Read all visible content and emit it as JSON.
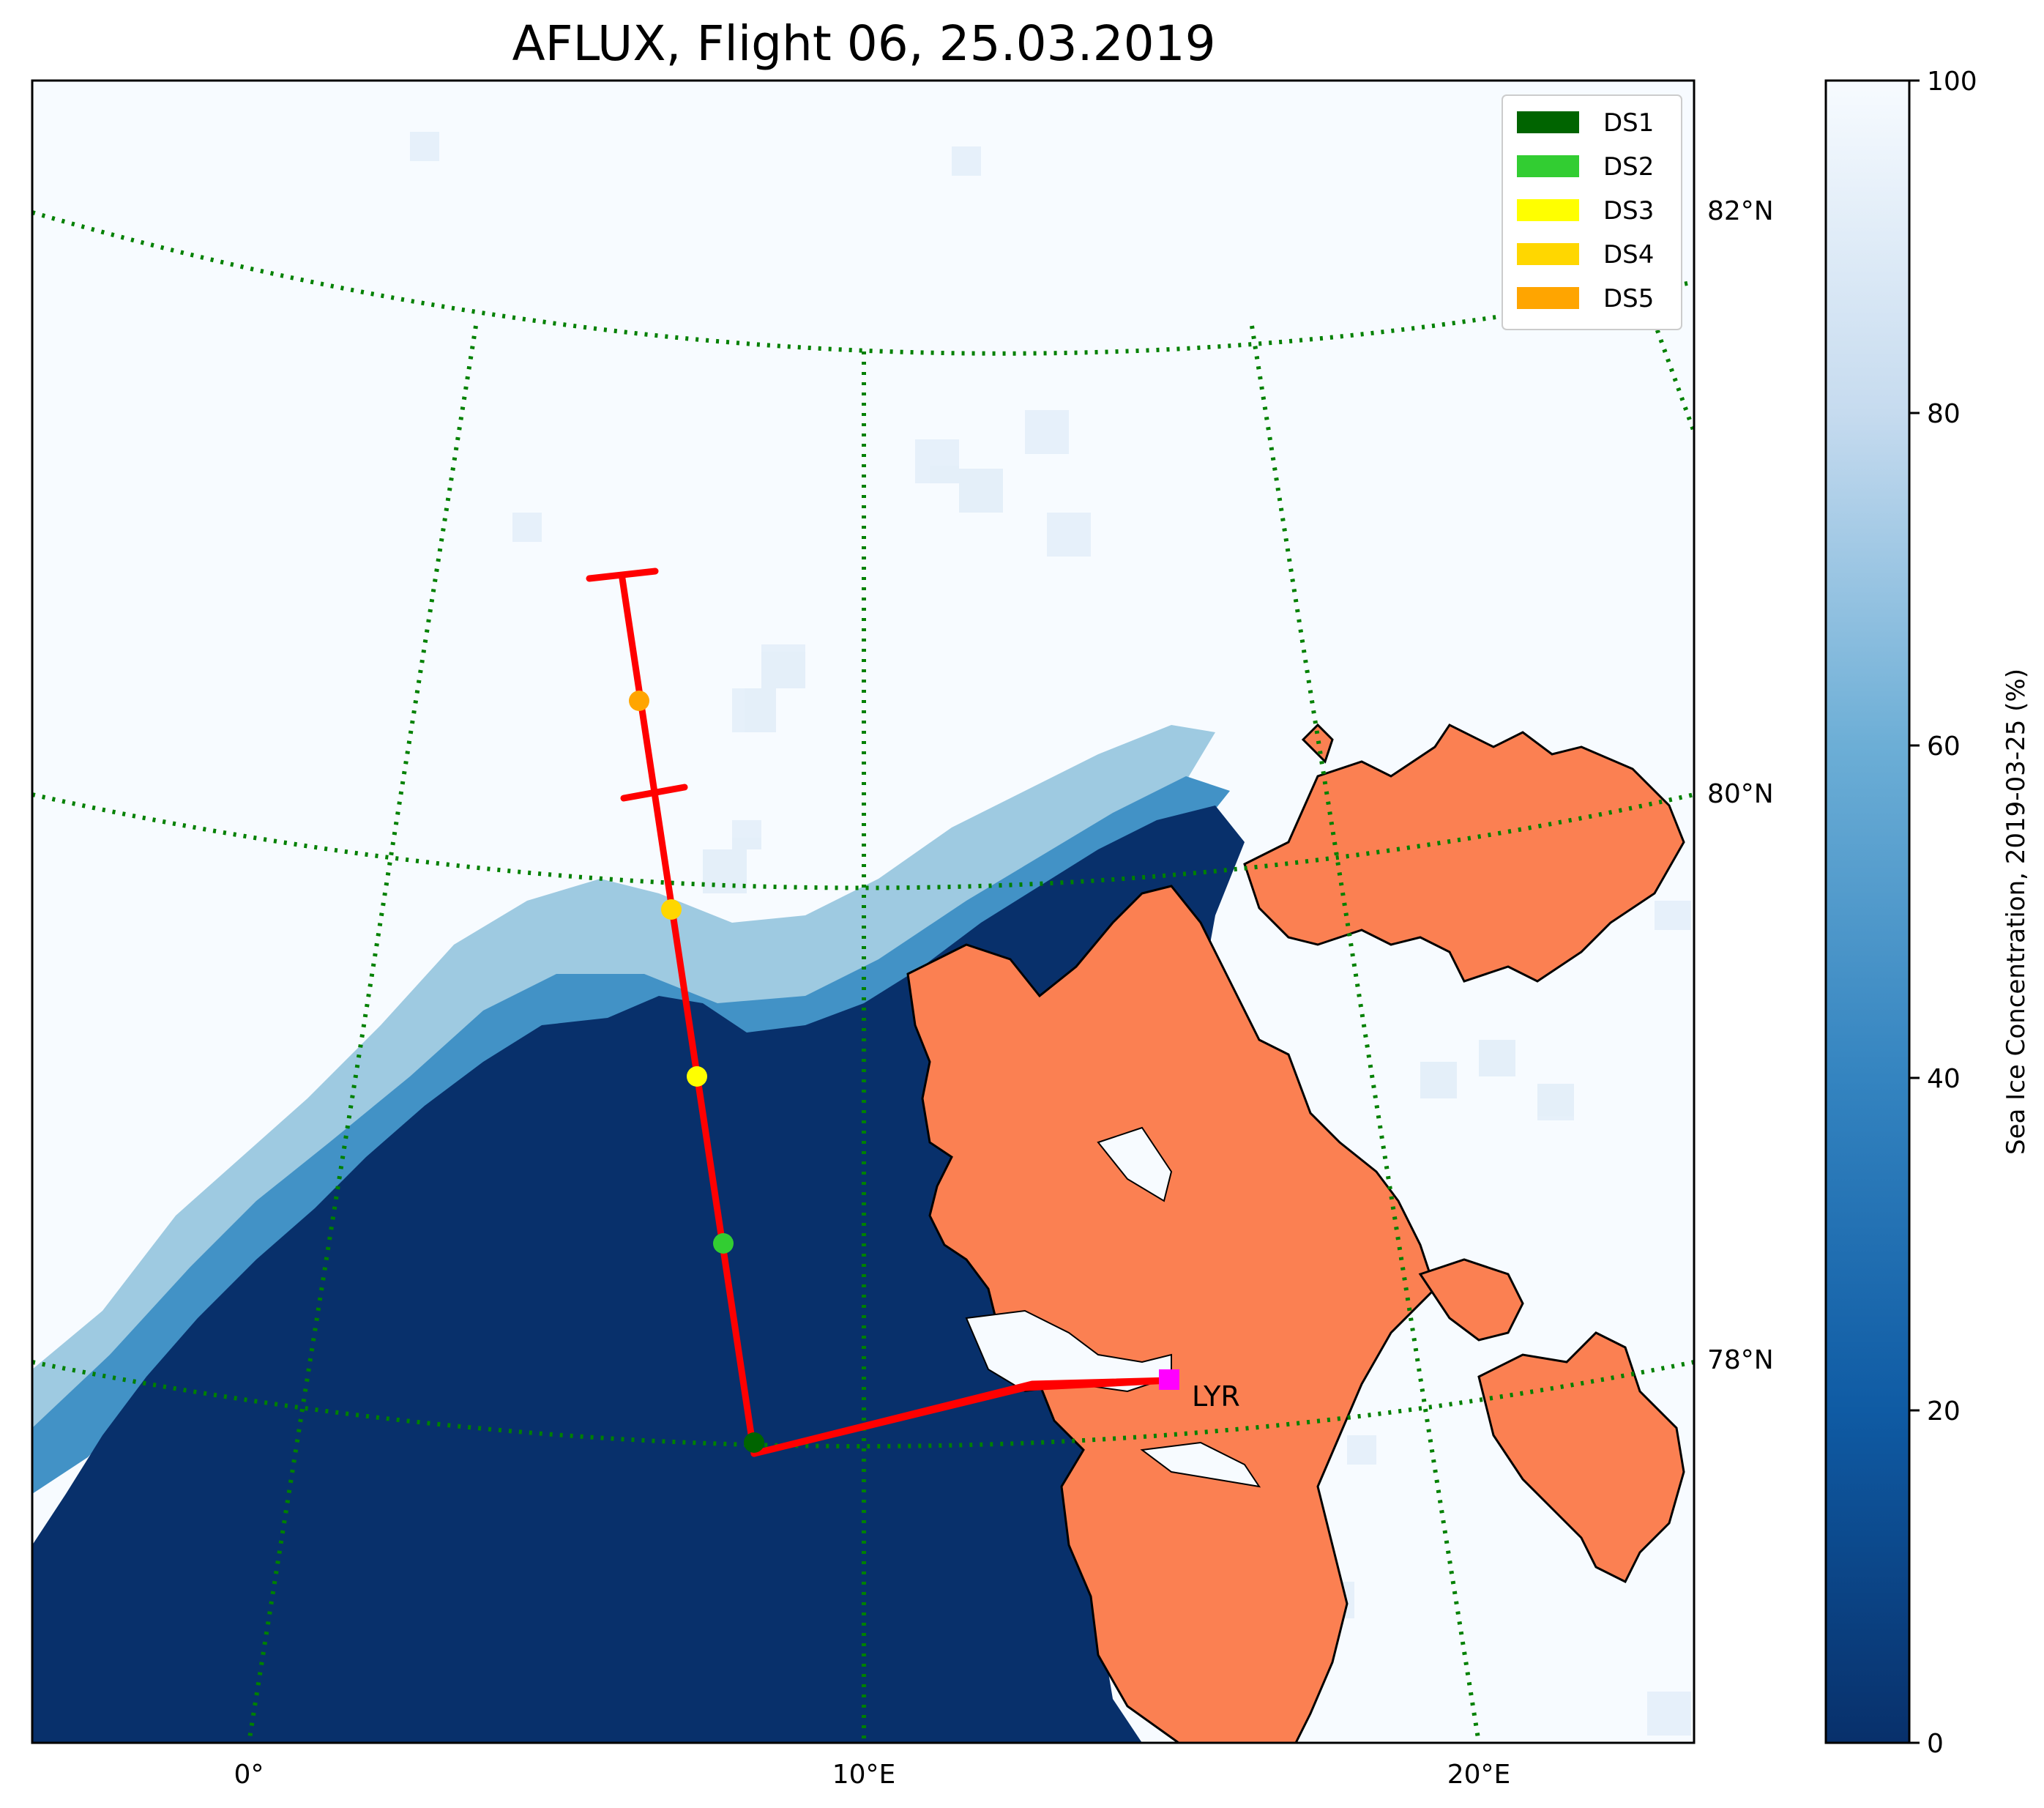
{
  "title": "AFLUX, Flight 06, 25.03.2019",
  "colors": {
    "ocean": "#08306b",
    "ice": "#f7fbff",
    "land": "#fb8052",
    "track": "#ff0000",
    "graticule": "#008000",
    "airport_marker": "#ff00ff"
  },
  "lat_labels": [
    "82°N",
    "80°N",
    "78°N"
  ],
  "lon_labels": [
    "0°",
    "10°E",
    "20°E"
  ],
  "legend": [
    {
      "label": "DS1",
      "color": "#006400"
    },
    {
      "label": "DS2",
      "color": "#32cd32"
    },
    {
      "label": "DS3",
      "color": "#ffff00"
    },
    {
      "label": "DS4",
      "color": "#ffd700"
    },
    {
      "label": "DS5",
      "color": "#ffa500"
    }
  ],
  "colorbar": {
    "label": "Sea Ice Concentration, 2019-03-25 (%)",
    "ticks": [
      "0",
      "20",
      "40",
      "60",
      "80",
      "100"
    ],
    "colormap": "Blues_r"
  },
  "station": {
    "label": "LYR"
  },
  "dropsondes": [
    {
      "name": "DS1",
      "color": "#006400"
    },
    {
      "name": "DS2",
      "color": "#32cd32"
    },
    {
      "name": "DS3",
      "color": "#ffff00"
    },
    {
      "name": "DS4",
      "color": "#ffd700"
    },
    {
      "name": "DS5",
      "color": "#ffa500"
    }
  ]
}
